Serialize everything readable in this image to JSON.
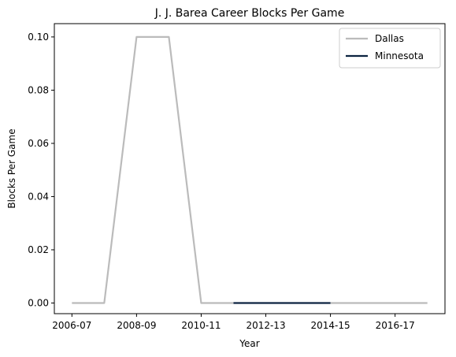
{
  "chart_data": {
    "type": "line",
    "title": "J. J. Barea Career Blocks Per Game",
    "xlabel": "Year",
    "ylabel": "Blocks Per Game",
    "x": [
      "2006-07",
      "2007-08",
      "2008-09",
      "2009-10",
      "2010-11",
      "2011-12",
      "2012-13",
      "2013-14",
      "2014-15",
      "2015-16",
      "2016-17",
      "2017-18"
    ],
    "x_ticks": [
      "2006-07",
      "2008-09",
      "2010-11",
      "2012-13",
      "2014-15",
      "2016-17"
    ],
    "y_ticks": [
      "0.00",
      "0.02",
      "0.04",
      "0.06",
      "0.08",
      "0.10"
    ],
    "ylim": [
      -0.004,
      0.105
    ],
    "grid": false,
    "legend_position": "top-right",
    "series": [
      {
        "name": "Dallas",
        "color": "#bbbbbb",
        "values": [
          0.0,
          0.0,
          0.1,
          0.1,
          0.0,
          0.0,
          null,
          null,
          0.0,
          0.0,
          0.0,
          0.0
        ]
      },
      {
        "name": "Minnesota",
        "color": "#0c2340",
        "values": [
          null,
          null,
          null,
          null,
          null,
          0.0,
          0.0,
          0.0,
          0.0,
          null,
          null,
          null
        ]
      }
    ]
  }
}
